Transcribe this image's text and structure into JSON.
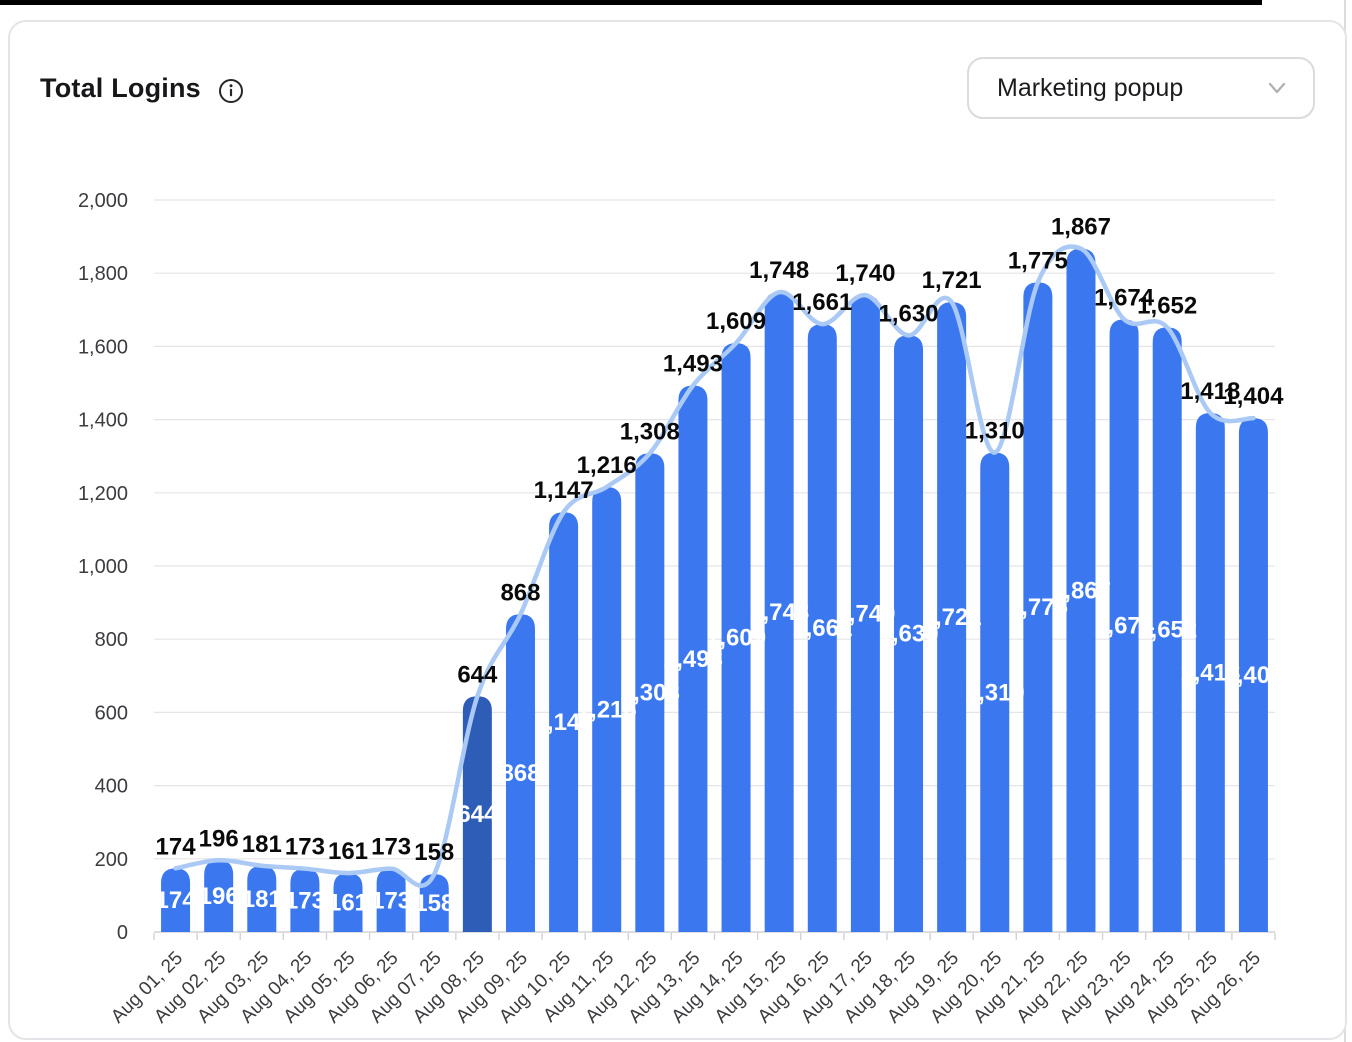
{
  "header": {
    "title": "Total Logins",
    "info_icon": "info-circle-icon"
  },
  "filter": {
    "selected_option": "Marketing popup",
    "chevron_icon": "chevron-down-icon"
  },
  "colors": {
    "bar": "#3b78f0",
    "bar_highlight": "#2e5db8",
    "line": "#abc9f5",
    "grid": "#e5e5e8",
    "axis": "#d2d2d7",
    "label_outer": "#0a0a0a",
    "label_inner": "#ffffff",
    "axis_text": "#3c3c40"
  },
  "chart_data": {
    "type": "bar",
    "title": "Total Logins",
    "categories": [
      "Aug 01, 25",
      "Aug 02, 25",
      "Aug 03, 25",
      "Aug 04, 25",
      "Aug 05, 25",
      "Aug 06, 25",
      "Aug 07, 25",
      "Aug 08, 25",
      "Aug 09, 25",
      "Aug 10, 25",
      "Aug 11, 25",
      "Aug 12, 25",
      "Aug 13, 25",
      "Aug 14, 25",
      "Aug 15, 25",
      "Aug 16, 25",
      "Aug 17, 25",
      "Aug 18, 25",
      "Aug 19, 25",
      "Aug 20, 25",
      "Aug 21, 25",
      "Aug 22, 25",
      "Aug 23, 25",
      "Aug 24, 25",
      "Aug 25, 25",
      "Aug 26, 25"
    ],
    "values": [
      174,
      196,
      181,
      173,
      161,
      173,
      158,
      644,
      868,
      1147,
      1216,
      1308,
      1493,
      1609,
      1748,
      1661,
      1740,
      1630,
      1721,
      1310,
      1775,
      1867,
      1674,
      1652,
      1418,
      1404
    ],
    "highlighted_category": "Aug 08, 25",
    "highlighted_index": 7,
    "overlay": "smoothed trend line through bar tops",
    "data_labels": "value above bar (black) and value centered inside bar (white)",
    "xlabel": "",
    "ylabel": "",
    "ylim": [
      0,
      2000
    ],
    "y_ticks": [
      0,
      200,
      400,
      600,
      800,
      1000,
      1200,
      1400,
      1600,
      1800,
      2000
    ],
    "grid": true,
    "legend": false
  }
}
